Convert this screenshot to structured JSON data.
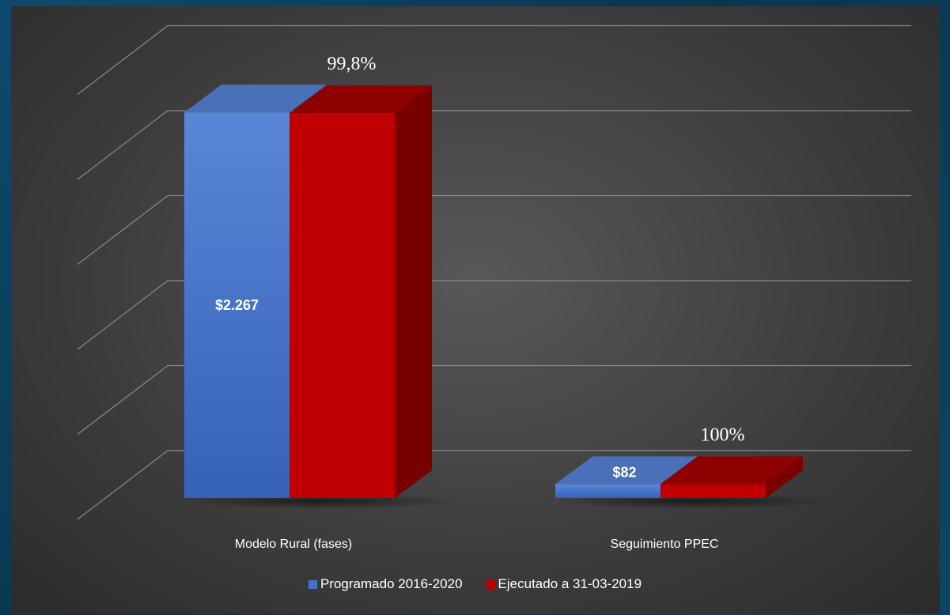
{
  "chart_data": {
    "type": "bar",
    "style": "3d-clustered-column",
    "categories": [
      "Modelo Rural (fases)",
      "Seguimiento PPEC"
    ],
    "series": [
      {
        "name": "Programado 2016-2020",
        "values": [
          2267,
          82
        ],
        "color": "#4472c4",
        "data_labels": [
          "$2.267",
          "$82"
        ]
      },
      {
        "name": "Ejecutado a 31-03-2019",
        "values": [
          2262,
          82
        ],
        "color": "#c00000",
        "data_labels": [
          "99,8%",
          "100%"
        ]
      }
    ],
    "ylim": [
      0,
      2500
    ],
    "grid": true,
    "legend_position": "bottom"
  }
}
